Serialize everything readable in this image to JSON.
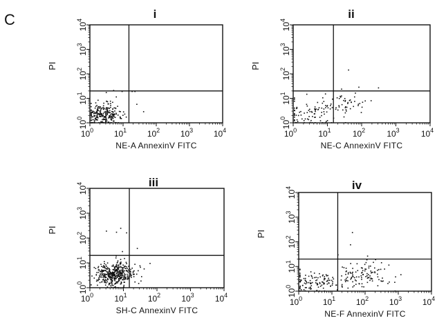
{
  "figure_label": "C",
  "chart_data": [
    {
      "type": "scatter",
      "panel_label": "i",
      "xlabel": "NE-A AnnexinV FITC",
      "ylabel": "PI",
      "xscale": "log",
      "yscale": "log",
      "xlim": [
        1,
        10000
      ],
      "ylim": [
        1,
        10000
      ],
      "xticks": [
        {
          "base": "10",
          "exp": "0"
        },
        {
          "base": "10",
          "exp": "1"
        },
        {
          "base": "10",
          "exp": "2"
        },
        {
          "base": "10",
          "exp": "3"
        },
        {
          "base": "10",
          "exp": "4"
        }
      ],
      "yticks": [
        {
          "base": "10",
          "exp": "0"
        },
        {
          "base": "10",
          "exp": "1"
        },
        {
          "base": "10",
          "exp": "2"
        },
        {
          "base": "10",
          "exp": "3"
        },
        {
          "base": "10",
          "exp": "4"
        }
      ],
      "quadrant_gate": {
        "x": 15,
        "y": 20
      },
      "clusters": [
        {
          "n": 260,
          "x_center": 2.4,
          "x_spread": 0.28,
          "y_center": 2.2,
          "y_spread": 0.22
        }
      ],
      "scattered_points": [
        [
          4,
          8
        ],
        [
          6,
          12
        ],
        [
          9,
          20
        ],
        [
          3,
          18
        ],
        [
          18,
          20
        ],
        [
          22,
          20
        ],
        [
          25,
          6
        ],
        [
          40,
          3
        ],
        [
          12,
          1.8
        ],
        [
          8,
          1.6
        ],
        [
          5,
          22
        ]
      ]
    },
    {
      "type": "scatter",
      "panel_label": "ii",
      "xlabel": "NE-C AnnexinV FITC",
      "ylabel": "PI",
      "xscale": "log",
      "yscale": "log",
      "xlim": [
        1,
        10000
      ],
      "ylim": [
        1,
        10000
      ],
      "xticks": [
        {
          "base": "10",
          "exp": "0"
        },
        {
          "base": "10",
          "exp": "1"
        },
        {
          "base": "10",
          "exp": "2"
        },
        {
          "base": "10",
          "exp": "3"
        },
        {
          "base": "10",
          "exp": "4"
        }
      ],
      "yticks": [
        {
          "base": "10",
          "exp": "0"
        },
        {
          "base": "10",
          "exp": "1"
        },
        {
          "base": "10",
          "exp": "2"
        },
        {
          "base": "10",
          "exp": "3"
        },
        {
          "base": "10",
          "exp": "4"
        }
      ],
      "quadrant_gate": {
        "x": 15,
        "y": 20
      },
      "clusters": [
        {
          "n": 90,
          "x_center": 4,
          "x_spread": 0.5,
          "y_center": 2.5,
          "y_spread": 0.3
        },
        {
          "n": 40,
          "x_center": 35,
          "x_spread": 0.3,
          "y_center": 6,
          "y_spread": 0.22
        }
      ],
      "scattered_points": [
        [
          40,
          150
        ],
        [
          80,
          30
        ],
        [
          300,
          28
        ],
        [
          25,
          25
        ],
        [
          2,
          1.3
        ],
        [
          60,
          12
        ],
        [
          45,
          9
        ]
      ]
    },
    {
      "type": "scatter",
      "panel_label": "iii",
      "xlabel": "SH-C AnnexinV FITC",
      "ylabel": "PI",
      "xscale": "log",
      "yscale": "log",
      "xlim": [
        1,
        10000
      ],
      "ylim": [
        1,
        10000
      ],
      "xticks": [
        {
          "base": "10",
          "exp": "0"
        },
        {
          "base": "10",
          "exp": "1"
        },
        {
          "base": "10",
          "exp": "2"
        },
        {
          "base": "10",
          "exp": "3"
        },
        {
          "base": "10",
          "exp": "4"
        }
      ],
      "yticks": [
        {
          "base": "10",
          "exp": "0"
        },
        {
          "base": "10",
          "exp": "1"
        },
        {
          "base": "10",
          "exp": "2"
        },
        {
          "base": "10",
          "exp": "3"
        },
        {
          "base": "10",
          "exp": "4"
        }
      ],
      "quadrant_gate": {
        "x": 15,
        "y": 20
      },
      "clusters": [
        {
          "n": 420,
          "x_center": 5,
          "x_spread": 0.28,
          "y_center": 3.5,
          "y_spread": 0.25
        }
      ],
      "scattered_points": [
        [
          3,
          200
        ],
        [
          6,
          180
        ],
        [
          12,
          170
        ],
        [
          8,
          260
        ],
        [
          25,
          40
        ],
        [
          40,
          6
        ],
        [
          60,
          10
        ],
        [
          20,
          5
        ],
        [
          30,
          8
        ],
        [
          9,
          30
        ]
      ]
    },
    {
      "type": "scatter",
      "panel_label": "iv",
      "xlabel": "NE-F AnnexinV FITC",
      "ylabel": "PI",
      "xscale": "log",
      "yscale": "log",
      "xlim": [
        1,
        10000
      ],
      "ylim": [
        1,
        10000
      ],
      "xticks": [
        {
          "base": "10",
          "exp": "0"
        },
        {
          "base": "10",
          "exp": "1"
        },
        {
          "base": "10",
          "exp": "2"
        },
        {
          "base": "10",
          "exp": "3"
        },
        {
          "base": "10",
          "exp": "4"
        }
      ],
      "yticks": [
        {
          "base": "10",
          "exp": "0"
        },
        {
          "base": "10",
          "exp": "1"
        },
        {
          "base": "10",
          "exp": "2"
        },
        {
          "base": "10",
          "exp": "3"
        },
        {
          "base": "10",
          "exp": "4"
        }
      ],
      "quadrant_gate": {
        "x": 15,
        "y": 20
      },
      "clusters": [
        {
          "n": 110,
          "x_center": 3,
          "x_spread": 0.45,
          "y_center": 2.2,
          "y_spread": 0.22
        },
        {
          "n": 110,
          "x_center": 80,
          "x_spread": 0.4,
          "y_center": 5,
          "y_spread": 0.3
        }
      ],
      "scattered_points": [
        [
          40,
          250
        ],
        [
          35,
          80
        ],
        [
          300,
          15
        ],
        [
          500,
          12
        ],
        [
          200,
          20
        ],
        [
          150,
          6
        ],
        [
          800,
          4
        ]
      ]
    }
  ]
}
